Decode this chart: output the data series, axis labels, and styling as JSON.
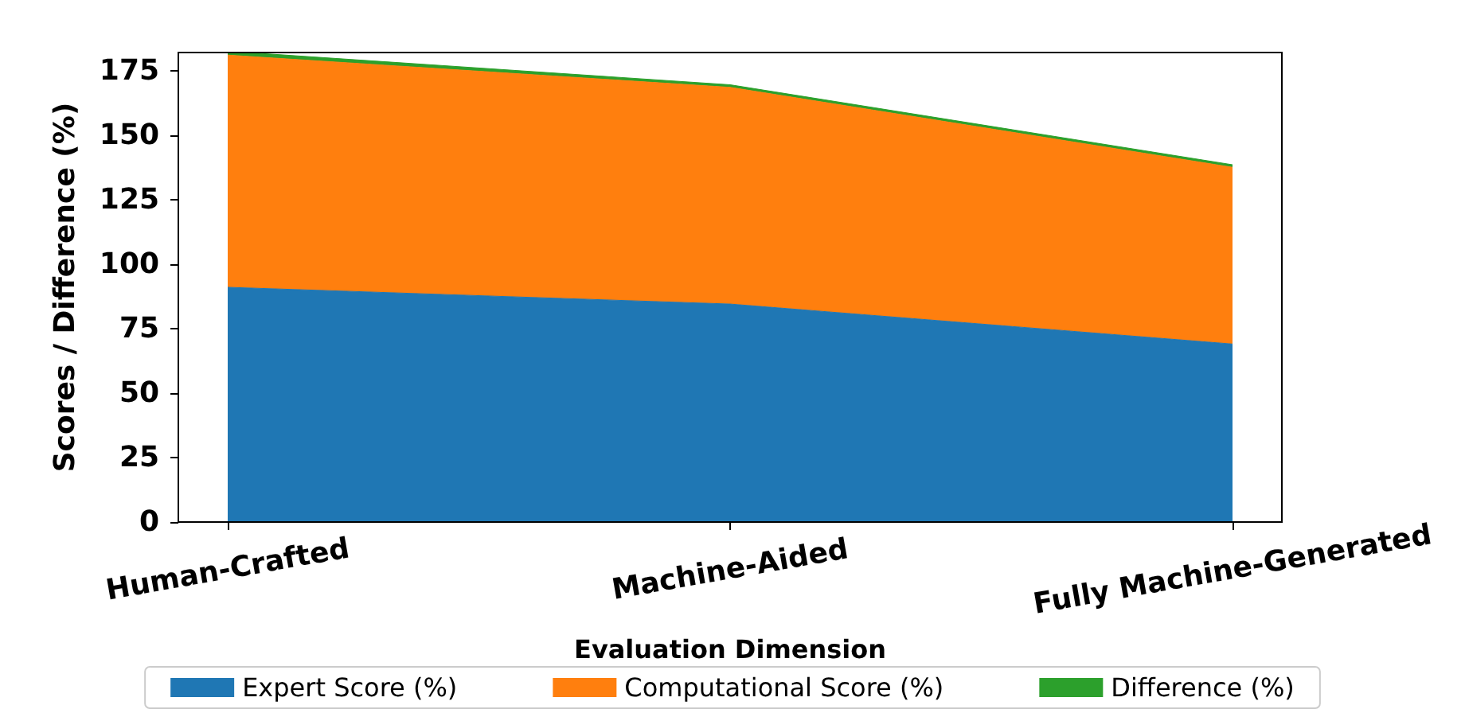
{
  "chart_data": {
    "type": "area",
    "stacked": true,
    "xlabel": "Evaluation Dimension",
    "ylabel": "Scores / Difference (%)",
    "categories": [
      "Human-Crafted",
      "Machine-Aided",
      "Fully Machine-Generated"
    ],
    "series": [
      {
        "name": "Expert Score (%)",
        "color": "#1f77b4",
        "values": [
          91,
          84.5,
          69
        ]
      },
      {
        "name": "Computational Score (%)",
        "color": "#ff7f0e",
        "values": [
          90,
          84,
          68.5
        ]
      },
      {
        "name": "Difference (%)",
        "color": "#2ca02c",
        "values": [
          1.5,
          1,
          1
        ]
      }
    ],
    "ylim": [
      0,
      182
    ],
    "yticks": [
      0,
      25,
      50,
      75,
      100,
      125,
      150,
      175
    ],
    "grid": false,
    "legend": "bottom"
  }
}
